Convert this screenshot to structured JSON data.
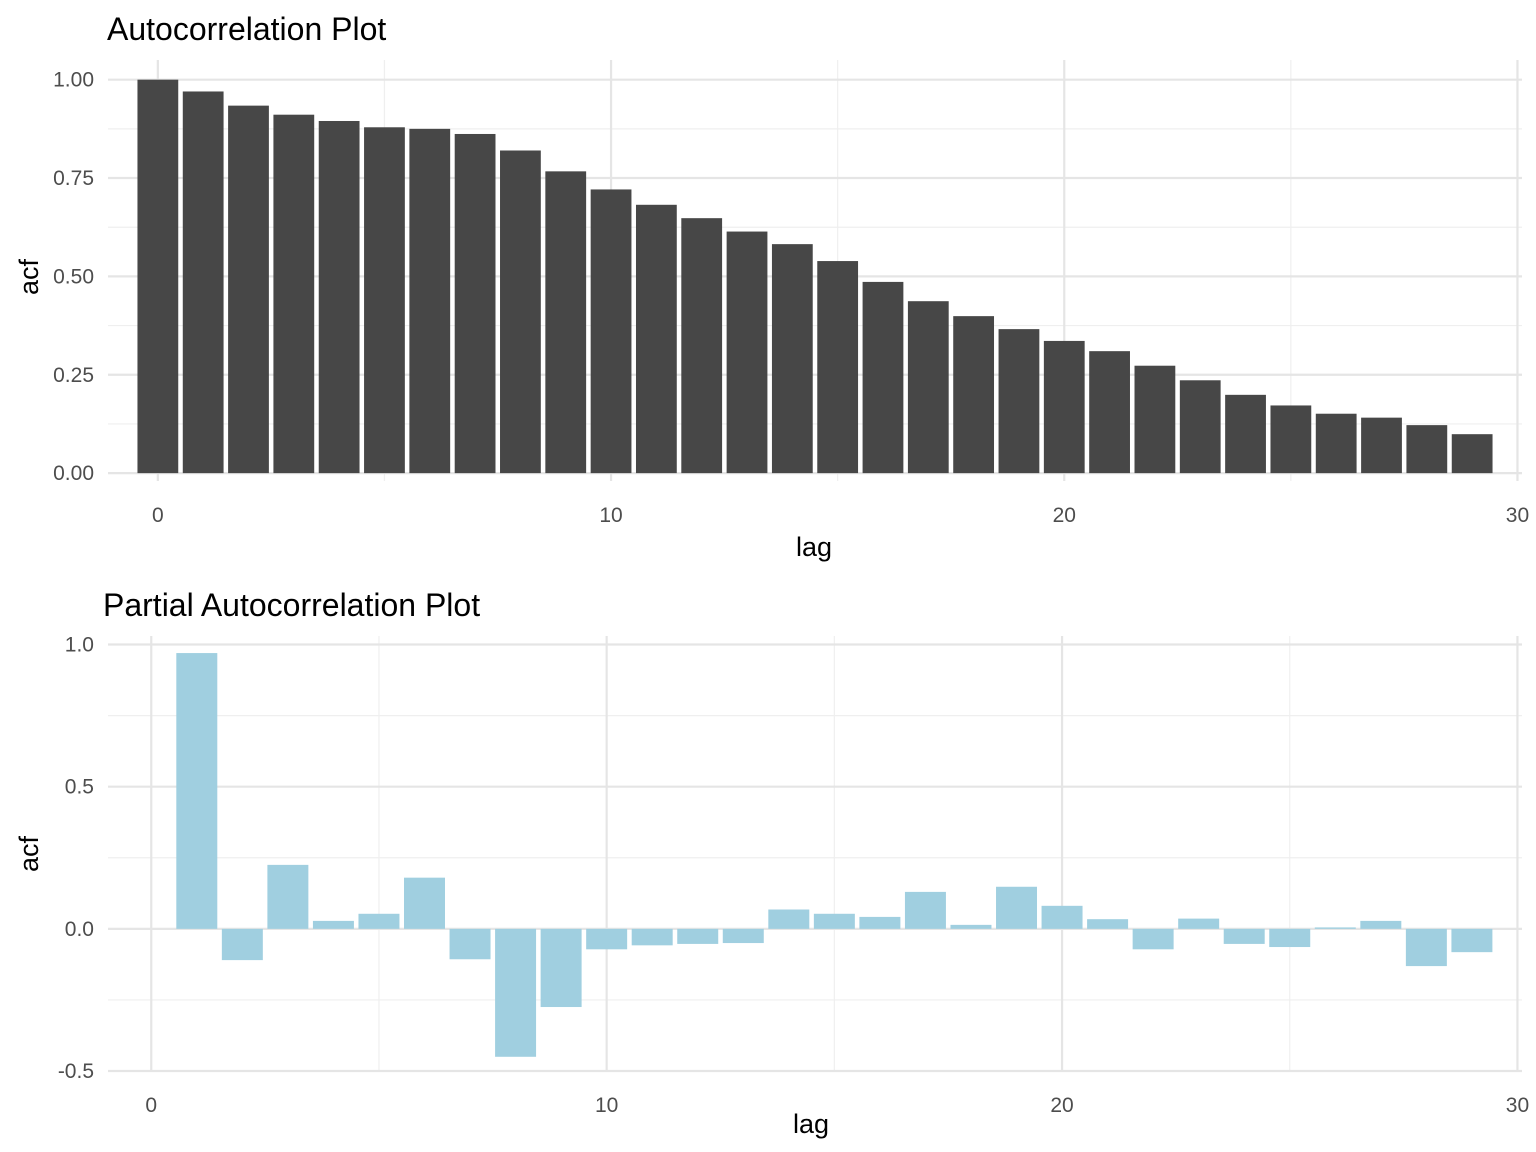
{
  "chart_data": [
    {
      "type": "bar",
      "title": "Autocorrelation Plot",
      "xlabel": "lag",
      "ylabel": "acf",
      "xlim": [
        -1.1,
        30.1
      ],
      "ylim": [
        -0.02,
        1.05
      ],
      "x_ticks": [
        0,
        10,
        20,
        30
      ],
      "y_ticks": [
        0.0,
        0.25,
        0.5,
        0.75,
        1.0
      ],
      "x_tick_labels": [
        "0",
        "10",
        "20",
        "30"
      ],
      "y_tick_labels": [
        "0.00",
        "0.25",
        "0.50",
        "0.75",
        "1.00"
      ],
      "grid": true,
      "bar_color": "#474747",
      "x": [
        0,
        1,
        2,
        3,
        4,
        5,
        6,
        7,
        8,
        9,
        10,
        11,
        12,
        13,
        14,
        15,
        16,
        17,
        18,
        19,
        20,
        21,
        22,
        23,
        24,
        25,
        26,
        27,
        28,
        29
      ],
      "values": [
        1.0,
        0.97,
        0.934,
        0.911,
        0.895,
        0.879,
        0.875,
        0.862,
        0.82,
        0.767,
        0.721,
        0.682,
        0.648,
        0.614,
        0.582,
        0.539,
        0.486,
        0.437,
        0.399,
        0.366,
        0.336,
        0.31,
        0.273,
        0.236,
        0.199,
        0.172,
        0.151,
        0.141,
        0.122,
        0.099
      ]
    },
    {
      "type": "bar",
      "title": "Partial Autocorrelation Plot",
      "xlabel": "lag",
      "ylabel": "acf",
      "xlim": [
        -0.95,
        30.1
      ],
      "ylim": [
        -0.5,
        1.03
      ],
      "x_ticks": [
        0,
        10,
        20,
        30
      ],
      "y_ticks": [
        -0.5,
        0.0,
        0.5,
        1.0
      ],
      "x_tick_labels": [
        "0",
        "10",
        "20",
        "30"
      ],
      "y_tick_labels": [
        "-0.5",
        "0.0",
        "0.5",
        "1.0"
      ],
      "grid": true,
      "bar_color": "#a0cfe0",
      "x": [
        1,
        2,
        3,
        4,
        5,
        6,
        7,
        8,
        9,
        10,
        11,
        12,
        13,
        14,
        15,
        16,
        17,
        18,
        19,
        20,
        21,
        22,
        23,
        24,
        25,
        26,
        27,
        28,
        29
      ],
      "values": [
        0.97,
        -0.11,
        0.225,
        0.028,
        0.053,
        0.18,
        -0.107,
        -0.45,
        -0.275,
        -0.072,
        -0.058,
        -0.053,
        -0.05,
        0.068,
        0.053,
        0.042,
        0.13,
        0.014,
        0.148,
        0.081,
        0.034,
        -0.072,
        0.036,
        -0.053,
        -0.064,
        0.005,
        0.028,
        -0.131,
        -0.082
      ]
    }
  ]
}
